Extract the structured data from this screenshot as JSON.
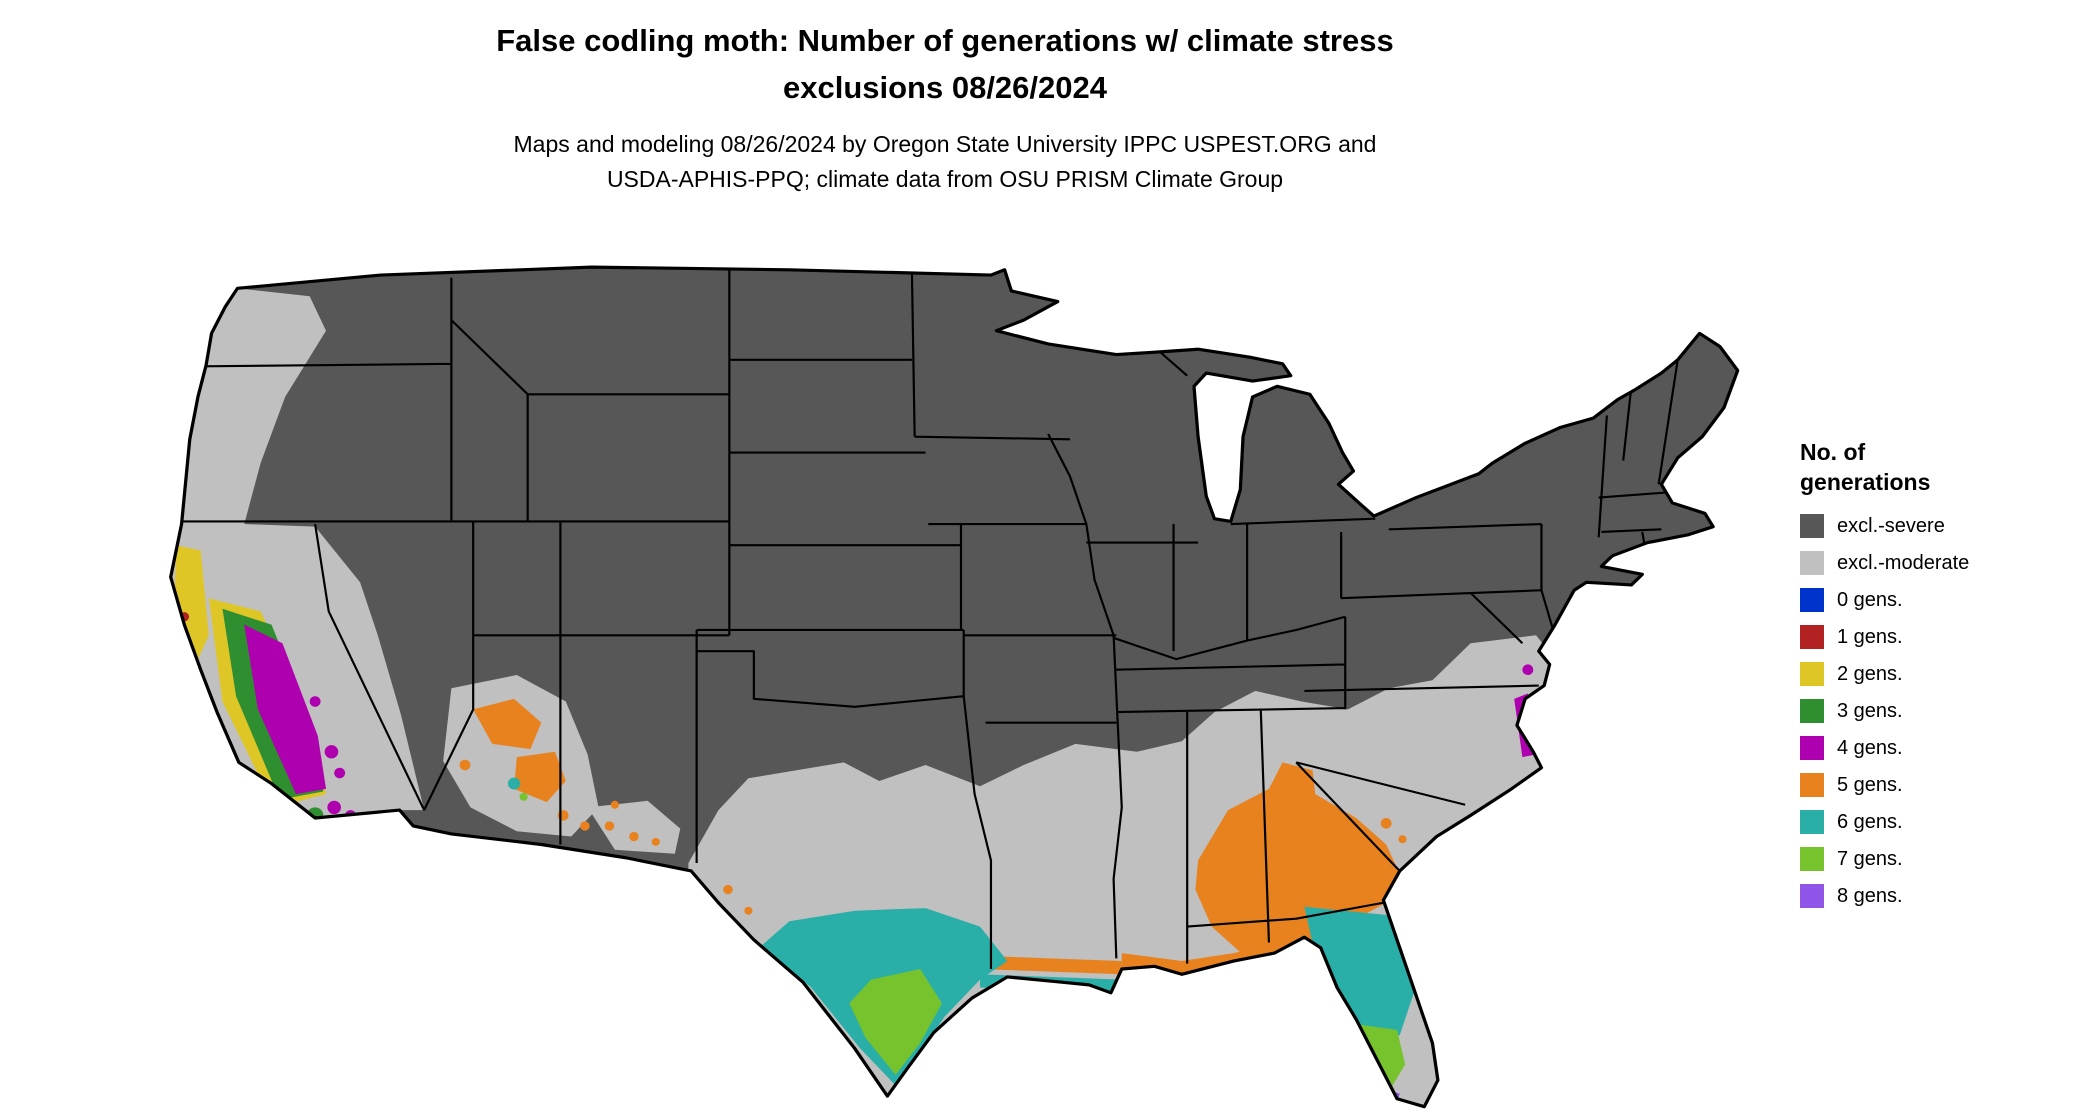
{
  "header": {
    "title_line1": "False codling moth: Number of generations w/ climate stress",
    "title_line2": "exclusions 08/26/2024",
    "subtitle_line1": "Maps and modeling 08/26/2024 by Oregon State University IPPC USPEST.ORG and",
    "subtitle_line2": "USDA-APHIS-PPQ; climate data from OSU PRISM Climate Group"
  },
  "legend": {
    "title_line1": "No. of",
    "title_line2": "generations",
    "items": [
      {
        "key": "severe",
        "label": "excl.-severe",
        "color": "#575757"
      },
      {
        "key": "moderate",
        "label": "excl.-moderate",
        "color": "#C0C0C0"
      },
      {
        "key": "g0",
        "label": "0 gens.",
        "color": "#0033CC"
      },
      {
        "key": "g1",
        "label": "1 gens.",
        "color": "#B22222"
      },
      {
        "key": "g2",
        "label": "2 gens.",
        "color": "#DFC627"
      },
      {
        "key": "g3",
        "label": "3 gens.",
        "color": "#2F8E2F"
      },
      {
        "key": "g4",
        "label": "4 gens.",
        "color": "#AE00AE"
      },
      {
        "key": "g5",
        "label": "5 gens.",
        "color": "#E8821E"
      },
      {
        "key": "g6",
        "label": "6 gens.",
        "color": "#29AFA8"
      },
      {
        "key": "g7",
        "label": "7 gens.",
        "color": "#76C32D"
      },
      {
        "key": "g8",
        "label": "8 gens.",
        "color": "#8E55E8"
      }
    ]
  },
  "map": {
    "region": "Continental United States",
    "layers_visible_on_map": [
      "excl.-severe",
      "excl.-moderate",
      "1 gens.",
      "2 gens.",
      "3 gens.",
      "4 gens.",
      "5 gens.",
      "6 gens.",
      "7 gens.",
      "8 gens."
    ]
  }
}
